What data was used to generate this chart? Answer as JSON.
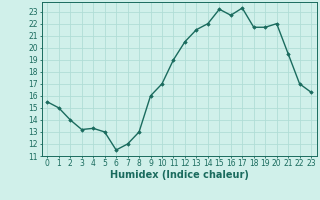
{
  "x": [
    0,
    1,
    2,
    3,
    4,
    5,
    6,
    7,
    8,
    9,
    10,
    11,
    12,
    13,
    14,
    15,
    16,
    17,
    18,
    19,
    20,
    21,
    22,
    23
  ],
  "y": [
    15.5,
    15.0,
    14.0,
    13.2,
    13.3,
    13.0,
    11.5,
    12.0,
    13.0,
    16.0,
    17.0,
    19.0,
    20.5,
    21.5,
    22.0,
    23.2,
    22.7,
    23.3,
    21.7,
    21.7,
    22.0,
    19.5,
    17.0,
    16.3
  ],
  "line_color": "#1a6b5e",
  "marker": "D",
  "marker_size": 1.8,
  "bg_color": "#d0f0ea",
  "grid_color": "#b0ddd6",
  "xlabel": "Humidex (Indice chaleur)",
  "xlim": [
    -0.5,
    23.5
  ],
  "ylim": [
    11,
    23.8
  ],
  "yticks": [
    11,
    12,
    13,
    14,
    15,
    16,
    17,
    18,
    19,
    20,
    21,
    22,
    23
  ],
  "xticks": [
    0,
    1,
    2,
    3,
    4,
    5,
    6,
    7,
    8,
    9,
    10,
    11,
    12,
    13,
    14,
    15,
    16,
    17,
    18,
    19,
    20,
    21,
    22,
    23
  ],
  "tick_fontsize": 5.5,
  "label_fontsize": 7.0,
  "line_width": 1.0
}
